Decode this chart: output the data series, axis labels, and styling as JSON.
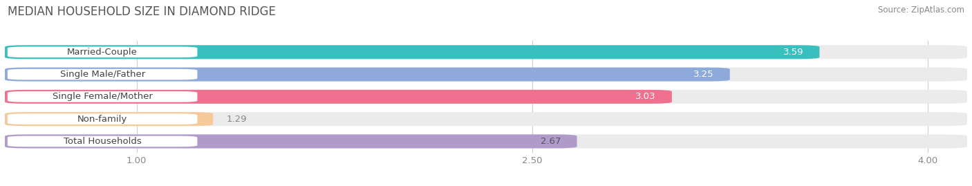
{
  "title": "MEDIAN HOUSEHOLD SIZE IN DIAMOND RIDGE",
  "source": "Source: ZipAtlas.com",
  "categories": [
    "Married-Couple",
    "Single Male/Father",
    "Single Female/Mother",
    "Non-family",
    "Total Households"
  ],
  "values": [
    3.59,
    3.25,
    3.03,
    1.29,
    2.67
  ],
  "bar_colors": [
    "#3abfbf",
    "#8eaadb",
    "#f07090",
    "#f5c99a",
    "#b09aca"
  ],
  "bar_bg_colors": [
    "#ebebeb",
    "#ebebeb",
    "#ebebeb",
    "#ebebeb",
    "#ebebeb"
  ],
  "label_text_colors": [
    "#555555",
    "#555555",
    "#555555",
    "#885500",
    "#555555"
  ],
  "value_text_colors": [
    "#ffffff",
    "#ffffff",
    "#ffffff",
    "#888888",
    "#555555"
  ],
  "xlim": [
    0.5,
    4.15
  ],
  "xticks": [
    1.0,
    2.5,
    4.0
  ],
  "title_fontsize": 12,
  "label_fontsize": 9.5,
  "value_fontsize": 9.5,
  "source_fontsize": 8.5,
  "bar_height": 0.62,
  "bar_gap": 0.18
}
